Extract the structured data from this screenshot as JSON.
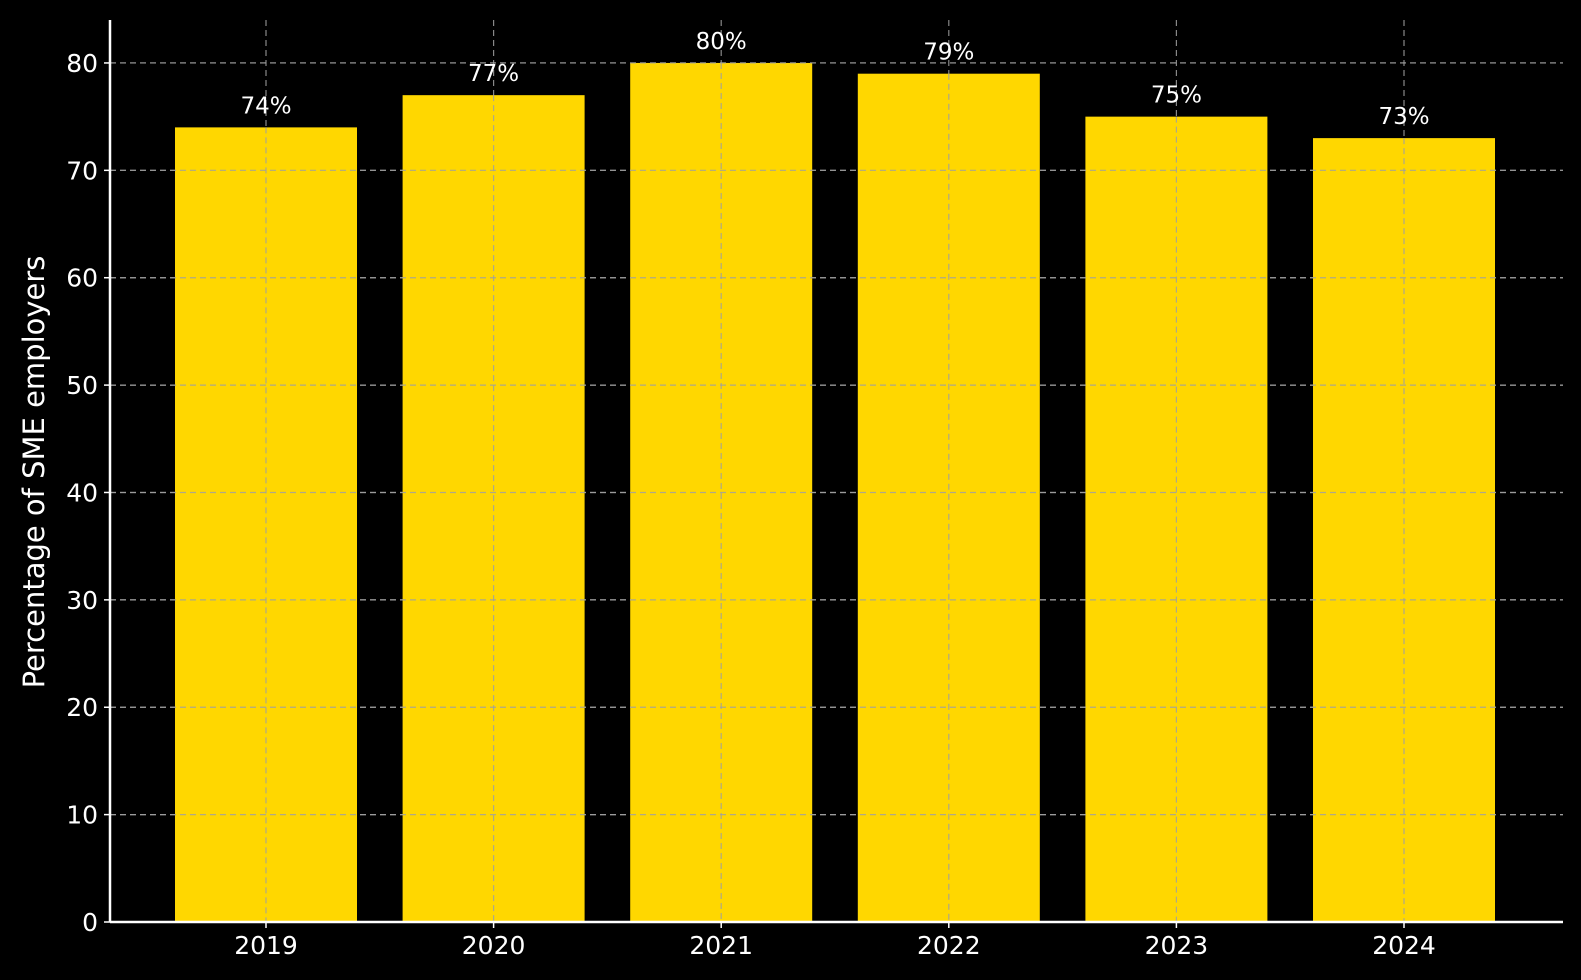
{
  "chart_data": {
    "type": "bar",
    "categories": [
      "2019",
      "2020",
      "2021",
      "2022",
      "2023",
      "2024"
    ],
    "values": [
      74,
      77,
      80,
      79,
      75,
      73
    ],
    "data_labels": [
      "74%",
      "77%",
      "80%",
      "79%",
      "75%",
      "73%"
    ],
    "title": "",
    "xlabel": "",
    "ylabel": "Percentage of SME employers",
    "ylim": [
      0,
      84
    ],
    "yticks": [
      0,
      10,
      20,
      30,
      40,
      50,
      60,
      70,
      80
    ],
    "grid": true,
    "colors": {
      "bar": "#FFD700",
      "background": "#000000",
      "text": "#ffffff",
      "grid": "#a0a0a0"
    }
  }
}
